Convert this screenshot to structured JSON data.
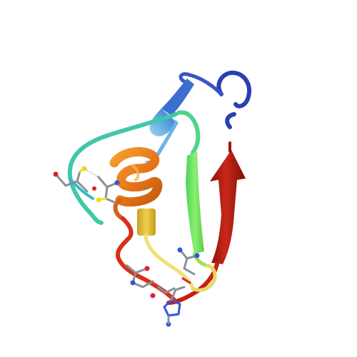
{
  "image": {
    "kind": "protein-ribbon-rendering",
    "background": "#ffffff",
    "has_text": false
  },
  "palette": {
    "n_terminus": "#2a3fb0",
    "blue": "#3a5fd0",
    "light_blue": "#5aa8e0",
    "cyan": "#40c8c0",
    "teal": "#3fc79a",
    "green": "#6fe85a",
    "yellow": "#e8d040",
    "orange": "#f08020",
    "dark_orange": "#d85a10",
    "red": "#c81a10",
    "c_terminus": "#a01808",
    "carbon": "#8a8f99",
    "nitrogen": "#3355dd",
    "oxygen": "#dd2233",
    "sulfur": "#e8e020"
  }
}
